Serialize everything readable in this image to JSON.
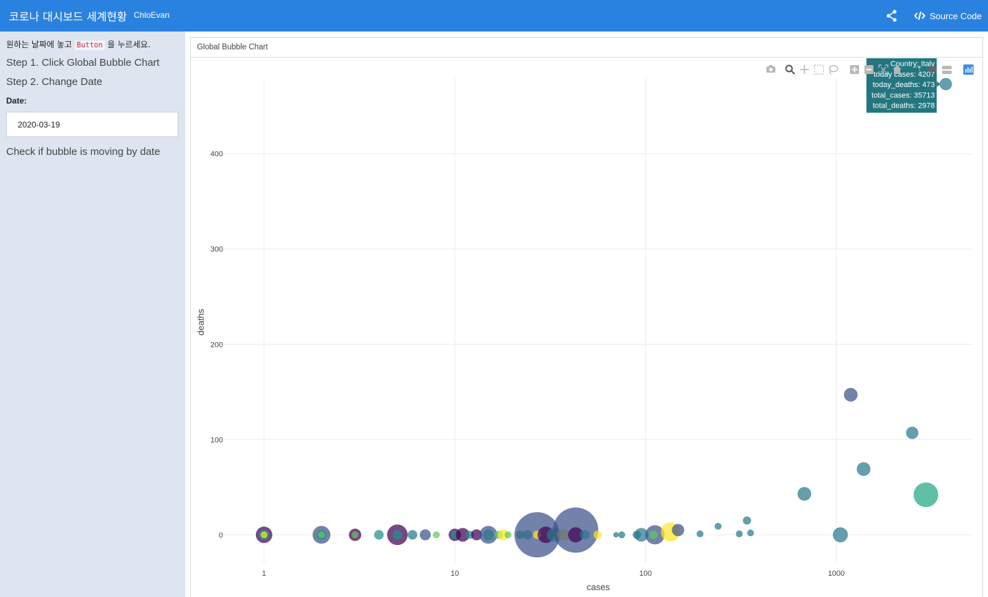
{
  "navbar": {
    "title": "코로나 대시보드 세계현황",
    "author": "ChloEvan",
    "share_icon": "share-icon",
    "source_code_label": "Source Code",
    "source_code_icon": "code-icon",
    "color": "#2a82e0"
  },
  "sidebar": {
    "intro_before": "원하는 날짜에 놓고 ",
    "intro_code": "Button",
    "intro_after": " 을 누르세요.",
    "step1": "Step 1. Click Global Bubble Chart",
    "step2": "Step 2. Change Date",
    "date_label": "Date:",
    "date_value": "2020-03-19",
    "check_text": "Check if bubble is moving by date",
    "background": "#dde6f0"
  },
  "panel": {
    "title": "Global Bubble Chart"
  },
  "modebar": {
    "icons": [
      "camera-icon",
      "zoom-icon",
      "pan-icon",
      "box-select-icon",
      "lasso-select-icon",
      "zoom-in-icon",
      "zoom-out-icon",
      "autoscale-icon",
      "reset-axes-icon",
      "spike-lines-icon",
      "hover-closest-icon",
      "hover-compare-icon",
      "plotly-logo-icon"
    ]
  },
  "chart_data": {
    "type": "scatter",
    "xlabel": "cases",
    "ylabel": "deaths",
    "x_scale": "log",
    "x_ticks": [
      1,
      10,
      100,
      1000
    ],
    "y_ticks": [
      0,
      100,
      200,
      300,
      400
    ],
    "xlim": [
      0.57,
      5200
    ],
    "ylim": [
      -30,
      480
    ],
    "grid": true,
    "points": [
      {
        "x": 1,
        "y": 0,
        "r": 12,
        "color": "#440154"
      },
      {
        "x": 1,
        "y": 0,
        "r": 8,
        "color": "#21918c"
      },
      {
        "x": 1,
        "y": 0,
        "r": 5,
        "color": "#fde725"
      },
      {
        "x": 2,
        "y": 0,
        "r": 13,
        "color": "#3b528b"
      },
      {
        "x": 2,
        "y": 0,
        "r": 7,
        "color": "#21918c"
      },
      {
        "x": 2,
        "y": 0,
        "r": 5,
        "color": "#5ec962"
      },
      {
        "x": 3,
        "y": 0,
        "r": 9,
        "color": "#440154"
      },
      {
        "x": 3,
        "y": 0,
        "r": 5,
        "color": "#5ec962"
      },
      {
        "x": 4,
        "y": 0,
        "r": 7,
        "color": "#21918c"
      },
      {
        "x": 5,
        "y": 0,
        "r": 15,
        "color": "#440154"
      },
      {
        "x": 5,
        "y": 0,
        "r": 7,
        "color": "#21918c"
      },
      {
        "x": 6,
        "y": 0,
        "r": 7,
        "color": "#2a788e"
      },
      {
        "x": 7,
        "y": 0,
        "r": 8,
        "color": "#3b528b"
      },
      {
        "x": 8,
        "y": 0,
        "r": 5,
        "color": "#5ec962"
      },
      {
        "x": 10,
        "y": 0,
        "r": 9,
        "color": "#440154"
      },
      {
        "x": 10,
        "y": 0,
        "r": 6,
        "color": "#21918c"
      },
      {
        "x": 11,
        "y": 0,
        "r": 10,
        "color": "#440154"
      },
      {
        "x": 12,
        "y": 0,
        "r": 6,
        "color": "#21918c"
      },
      {
        "x": 13,
        "y": 0,
        "r": 8,
        "color": "#440154"
      },
      {
        "x": 15,
        "y": 0,
        "r": 13,
        "color": "#3b528b"
      },
      {
        "x": 15,
        "y": 0,
        "r": 8,
        "color": "#2a788e"
      },
      {
        "x": 17,
        "y": 0,
        "r": 6,
        "color": "#5ec962"
      },
      {
        "x": 18,
        "y": 0,
        "r": 8,
        "color": "#fde725"
      },
      {
        "x": 19,
        "y": 0,
        "r": 5,
        "color": "#5ec962"
      },
      {
        "x": 22,
        "y": 0,
        "r": 6,
        "color": "#22a884"
      },
      {
        "x": 24,
        "y": 0,
        "r": 7,
        "color": "#22a884"
      },
      {
        "x": 27,
        "y": 0,
        "r": 33,
        "color": "#3b528b"
      },
      {
        "x": 27,
        "y": 0,
        "r": 6,
        "color": "#fde725"
      },
      {
        "x": 30,
        "y": 0,
        "r": 12,
        "color": "#440154"
      },
      {
        "x": 33,
        "y": 0,
        "r": 10,
        "color": "#2a788e"
      },
      {
        "x": 37,
        "y": 0,
        "r": 9,
        "color": "#fde725"
      },
      {
        "x": 43,
        "y": 5,
        "r": 33,
        "color": "#3b528b"
      },
      {
        "x": 43,
        "y": 0,
        "r": 11,
        "color": "#440154"
      },
      {
        "x": 48,
        "y": 0,
        "r": 7,
        "color": "#2a788e"
      },
      {
        "x": 56,
        "y": 0,
        "r": 6,
        "color": "#fde725"
      },
      {
        "x": 70,
        "y": 0,
        "r": 4,
        "color": "#2a788e"
      },
      {
        "x": 75,
        "y": 0,
        "r": 5,
        "color": "#2a788e"
      },
      {
        "x": 90,
        "y": 0,
        "r": 6,
        "color": "#2a788e"
      },
      {
        "x": 95,
        "y": 0,
        "r": 10,
        "color": "#2a788e"
      },
      {
        "x": 112,
        "y": 0,
        "r": 14,
        "color": "#3b528b"
      },
      {
        "x": 110,
        "y": 0,
        "r": 6,
        "color": "#5ec962"
      },
      {
        "x": 135,
        "y": 3,
        "r": 14,
        "color": "#fde725"
      },
      {
        "x": 148,
        "y": 5,
        "r": 9,
        "color": "#3b528b"
      },
      {
        "x": 193,
        "y": 1,
        "r": 5,
        "color": "#2a788e"
      },
      {
        "x": 240,
        "y": 9,
        "r": 5,
        "color": "#2a788e"
      },
      {
        "x": 310,
        "y": 1,
        "r": 5,
        "color": "#2a788e"
      },
      {
        "x": 340,
        "y": 15,
        "r": 6,
        "color": "#2a788e"
      },
      {
        "x": 355,
        "y": 2,
        "r": 5,
        "color": "#2a788e"
      },
      {
        "x": 680,
        "y": 43,
        "r": 10,
        "color": "#2a788e"
      },
      {
        "x": 1050,
        "y": 0,
        "r": 11,
        "color": "#2a788e"
      },
      {
        "x": 1190,
        "y": 147,
        "r": 10,
        "color": "#3b528b"
      },
      {
        "x": 1390,
        "y": 69,
        "r": 10,
        "color": "#2a788e"
      },
      {
        "x": 2500,
        "y": 107,
        "r": 9,
        "color": "#2a788e"
      },
      {
        "x": 2950,
        "y": 42,
        "r": 18,
        "color": "#22a884"
      },
      {
        "x": 3750,
        "y": 473,
        "r": 9,
        "color": "#2a788e"
      }
    ],
    "tooltip": {
      "lines": [
        "Country: Italy",
        "today cases: 4207",
        "today_deaths: 473",
        "total_cases: 35713",
        "total_deaths: 2978"
      ],
      "background": "#23767f",
      "anchor_point": {
        "x": 3750,
        "y": 473
      }
    }
  }
}
